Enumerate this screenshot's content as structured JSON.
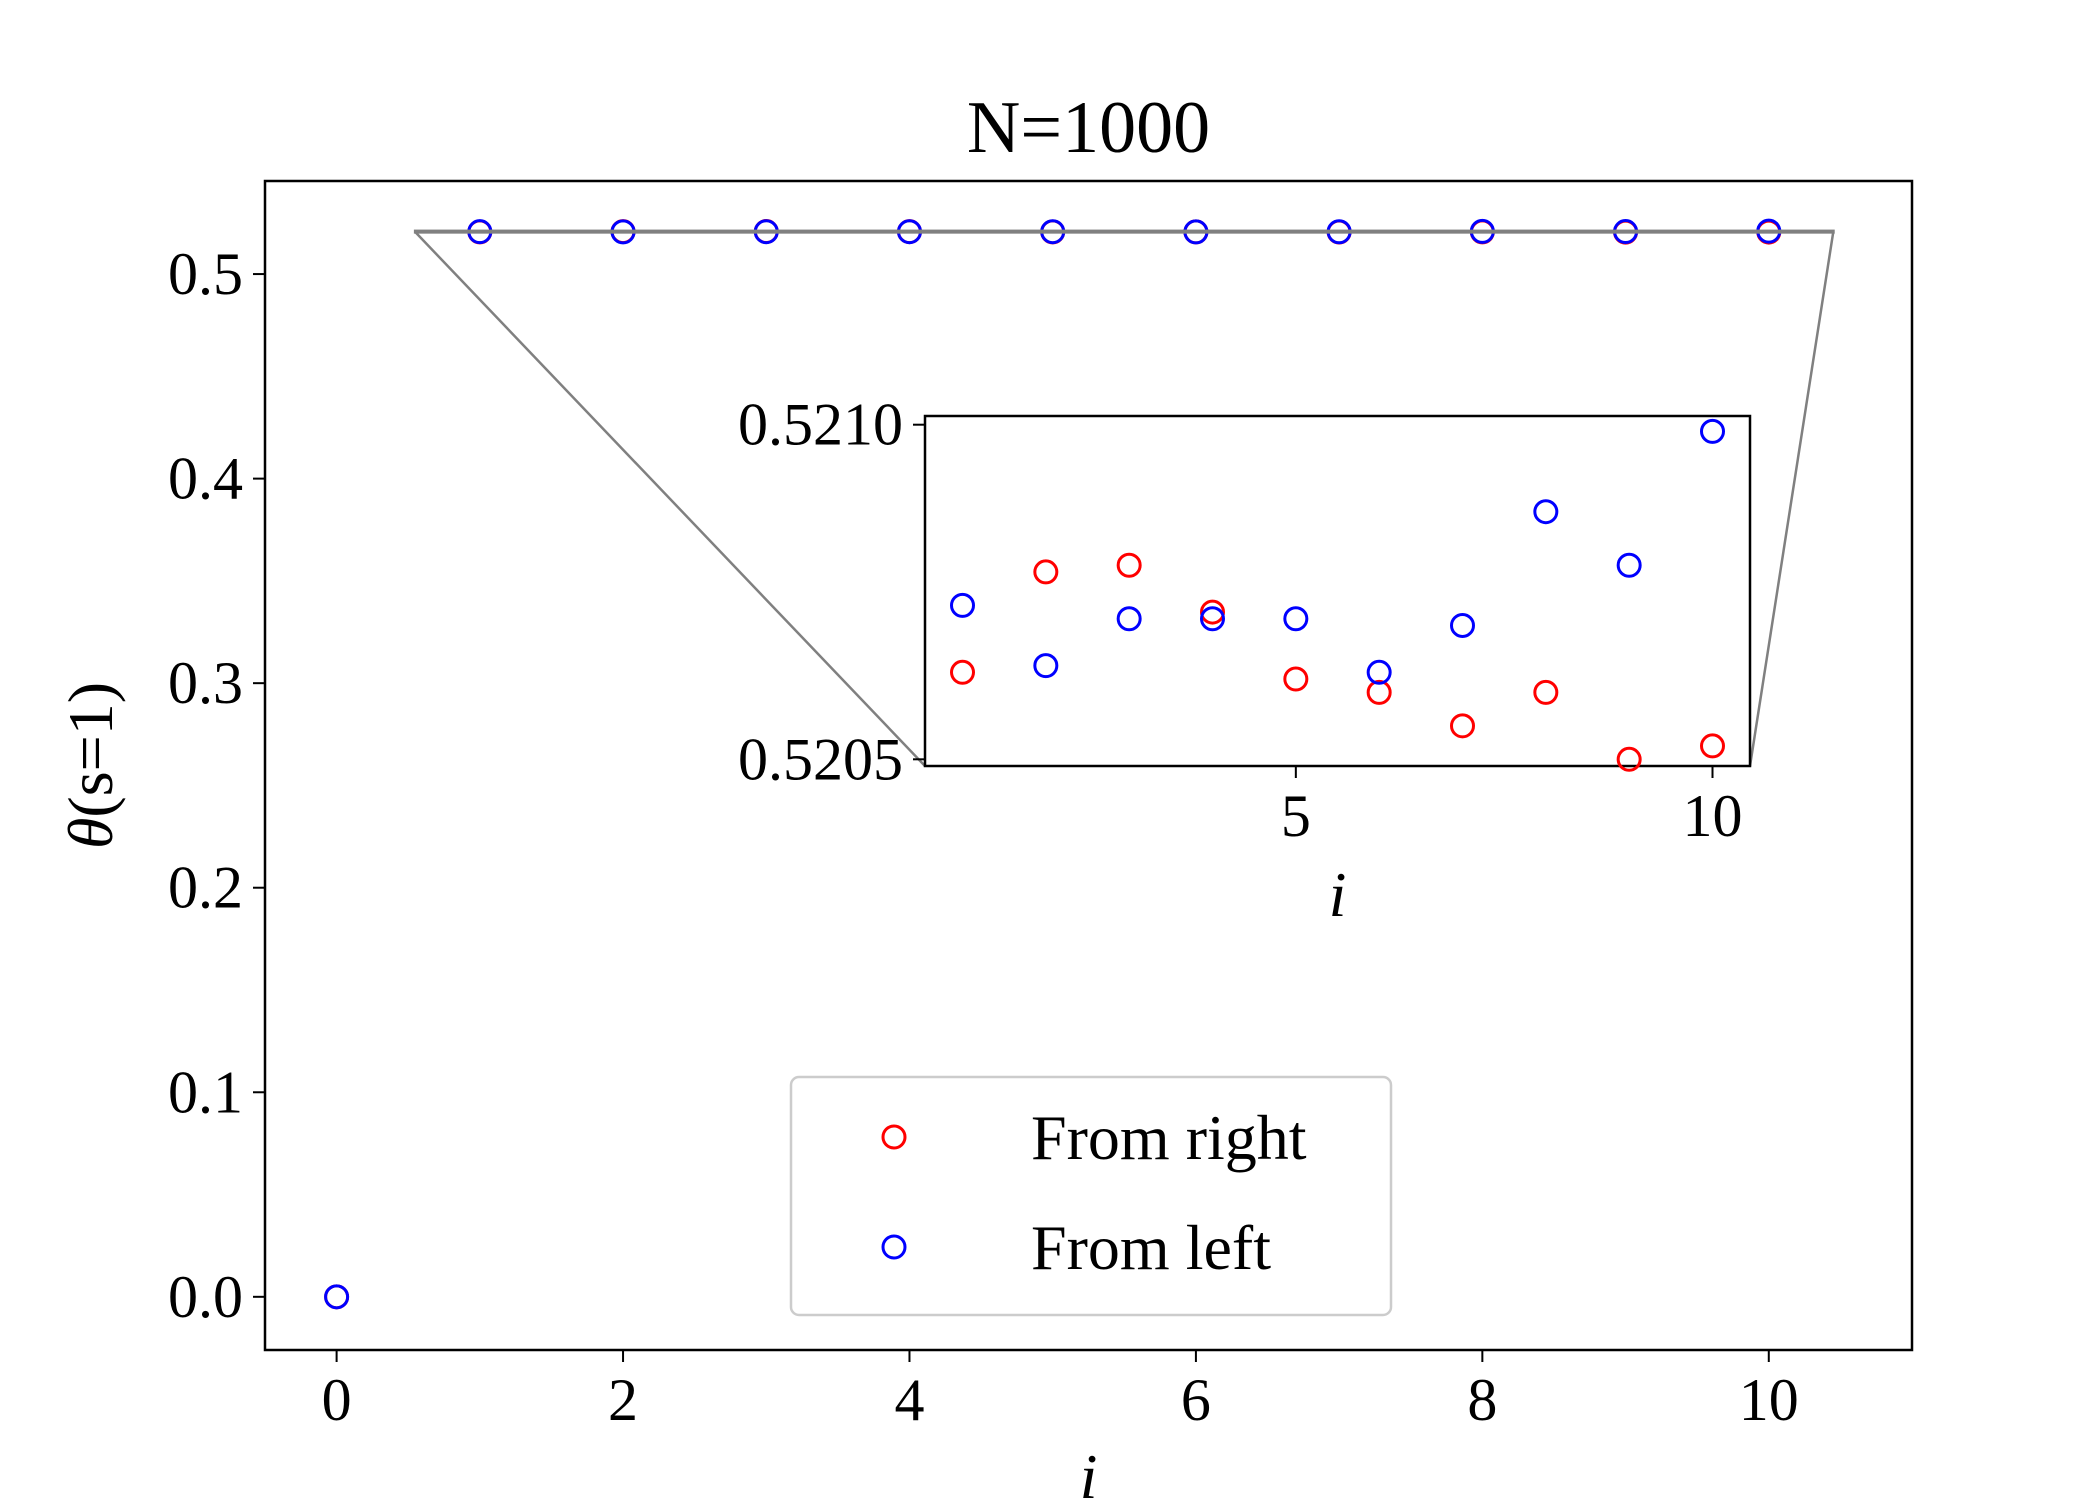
{
  "chart_data": [
    {
      "type": "scatter",
      "title": "N=1000",
      "xlabel": "i",
      "ylabel_prefix": "θ",
      "ylabel_suffix": "(s=1)",
      "xlim": [
        -0.5,
        11
      ],
      "ylim": [
        -0.026,
        0.5455
      ],
      "xticks": [
        0,
        2,
        4,
        6,
        8,
        10
      ],
      "xtick_labels": [
        "0",
        "2",
        "4",
        "6",
        "8",
        "10"
      ],
      "yticks": [
        0.0,
        0.1,
        0.2,
        0.3,
        0.4,
        0.5
      ],
      "ytick_labels": [
        "0.0",
        "0.1",
        "0.2",
        "0.3",
        "0.4",
        "0.5"
      ],
      "legend_placement": "lower-center",
      "series": [
        {
          "name": "From right",
          "color": "#ff0000",
          "marker": "open-circle",
          "x": [
            0,
            1,
            2,
            3,
            4,
            5,
            6,
            7,
            8,
            9,
            10
          ],
          "y": [
            0.0,
            0.52063,
            0.52078,
            0.52079,
            0.52072,
            0.52062,
            0.5206,
            0.52055,
            0.5206,
            0.5205,
            0.52052
          ]
        },
        {
          "name": "From left",
          "color": "#0000ff",
          "marker": "open-circle",
          "x": [
            0,
            1,
            2,
            3,
            4,
            5,
            6,
            7,
            8,
            9,
            10
          ],
          "y": [
            0.0,
            0.52073,
            0.52064,
            0.52071,
            0.52071,
            0.52071,
            0.52063,
            0.5207,
            0.52087,
            0.52079,
            0.52099
          ]
        }
      ]
    },
    {
      "type": "scatter",
      "role": "inset",
      "xlabel": "i",
      "xlim": [
        0.55,
        10.45
      ],
      "ylim": [
        0.52049,
        0.521013
      ],
      "xticks": [
        5,
        10
      ],
      "xtick_labels": [
        "5",
        "10"
      ],
      "yticks": [
        0.5205,
        0.521
      ],
      "ytick_labels": [
        "0.5205",
        "0.5210"
      ]
    }
  ]
}
